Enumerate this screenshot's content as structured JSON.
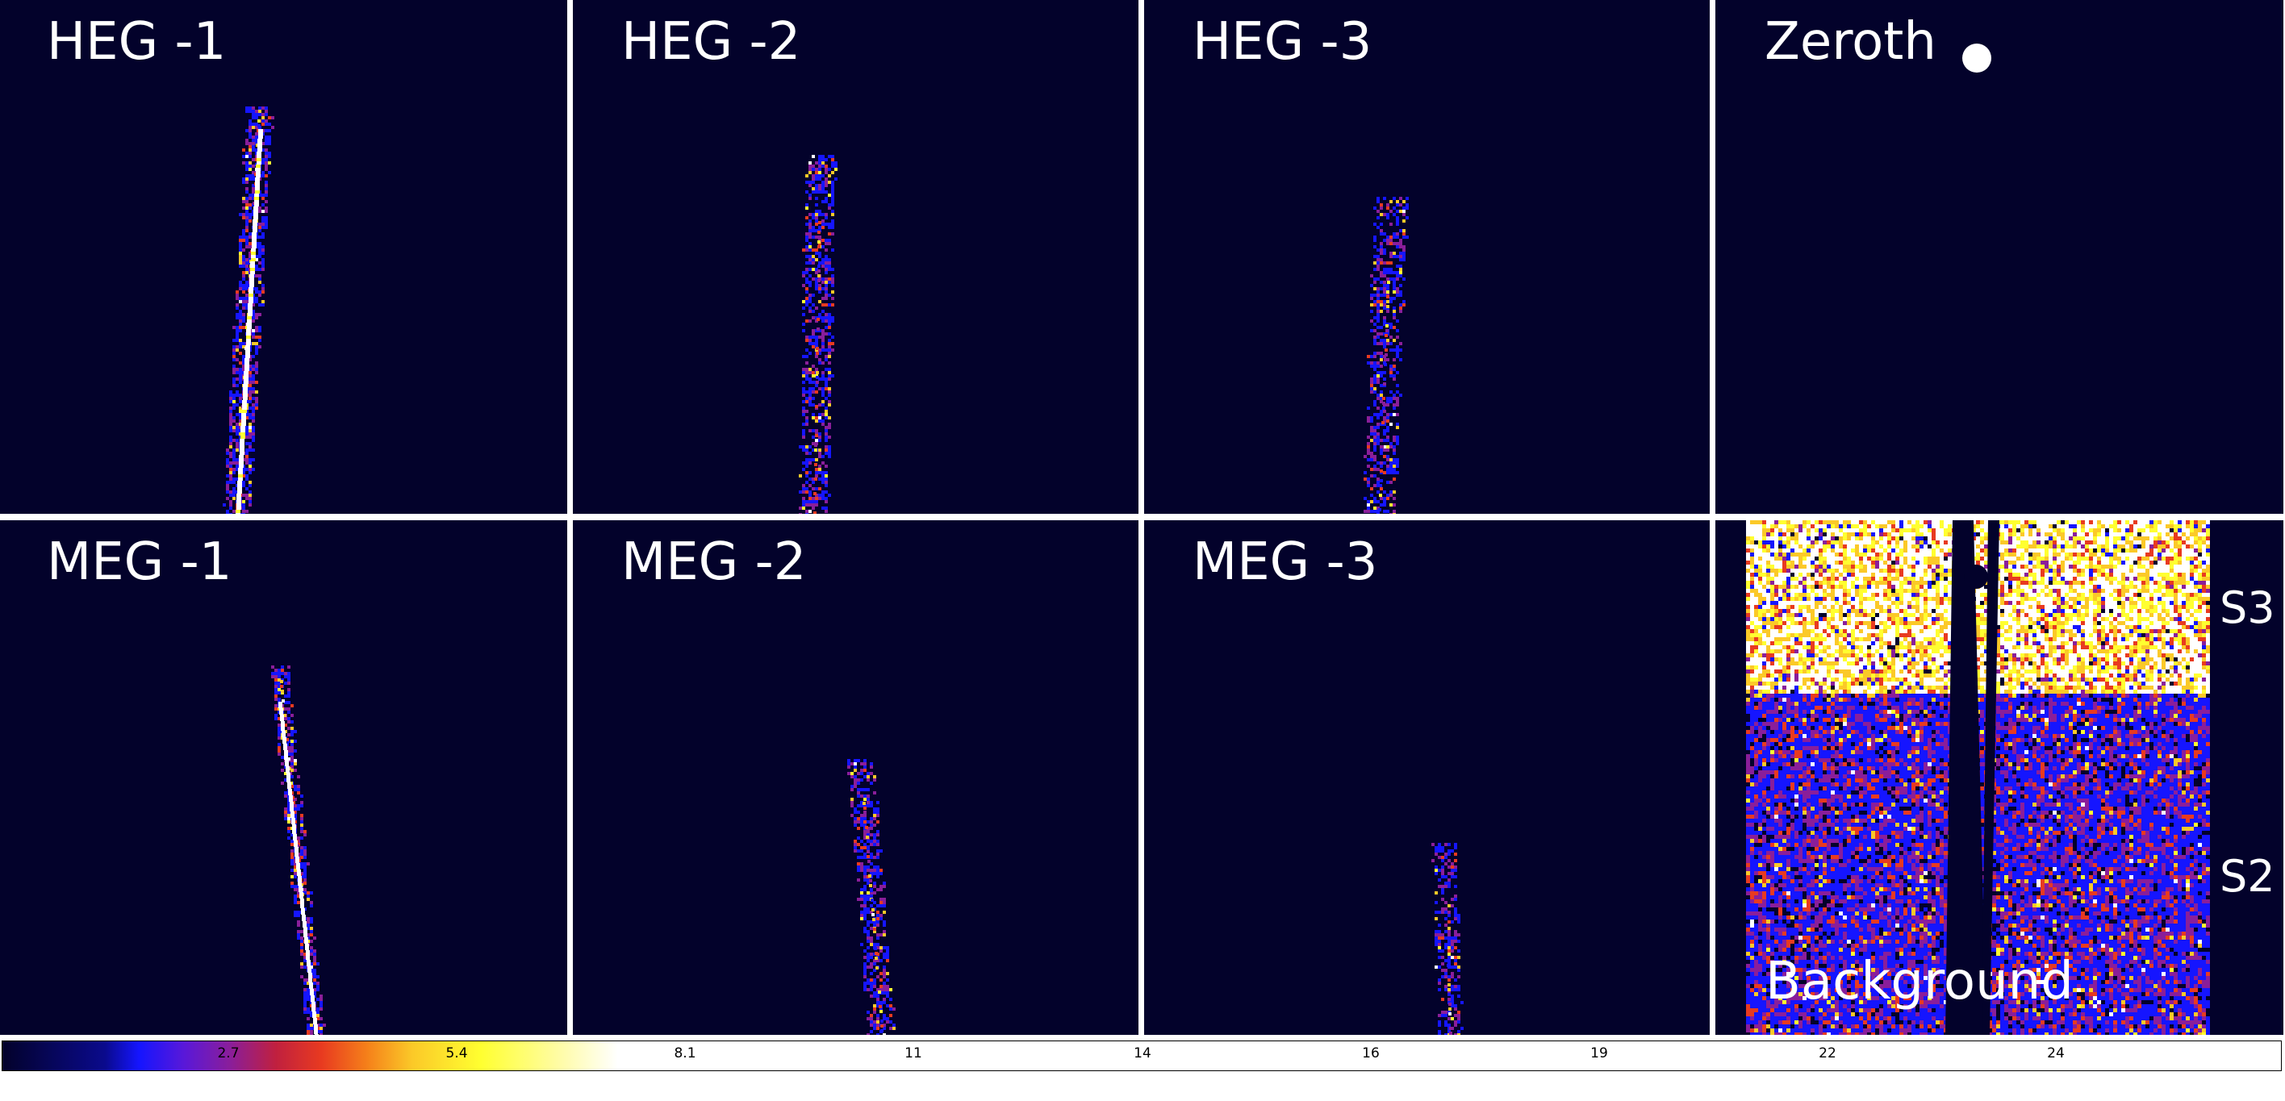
{
  "panels": {
    "heg1": {
      "label": "HEG -1"
    },
    "heg2": {
      "label": "HEG -2"
    },
    "heg3": {
      "label": "HEG -3"
    },
    "zeroth": {
      "label": "Zeroth"
    },
    "meg1": {
      "label": "MEG -1"
    },
    "meg2": {
      "label": "MEG -2"
    },
    "meg3": {
      "label": "MEG -3"
    },
    "background": {
      "label": "Background",
      "chip_upper": "S3",
      "chip_lower": "S2"
    }
  },
  "colorbar": {
    "ticks": [
      "2.7",
      "5.4",
      "8.1",
      "11",
      "14",
      "16",
      "19",
      "22",
      "24"
    ],
    "colors": [
      "#03022b",
      "#1515ff",
      "#8a1e9a",
      "#e83a20",
      "#fbc928",
      "#ffff30",
      "#ffffff"
    ]
  }
}
